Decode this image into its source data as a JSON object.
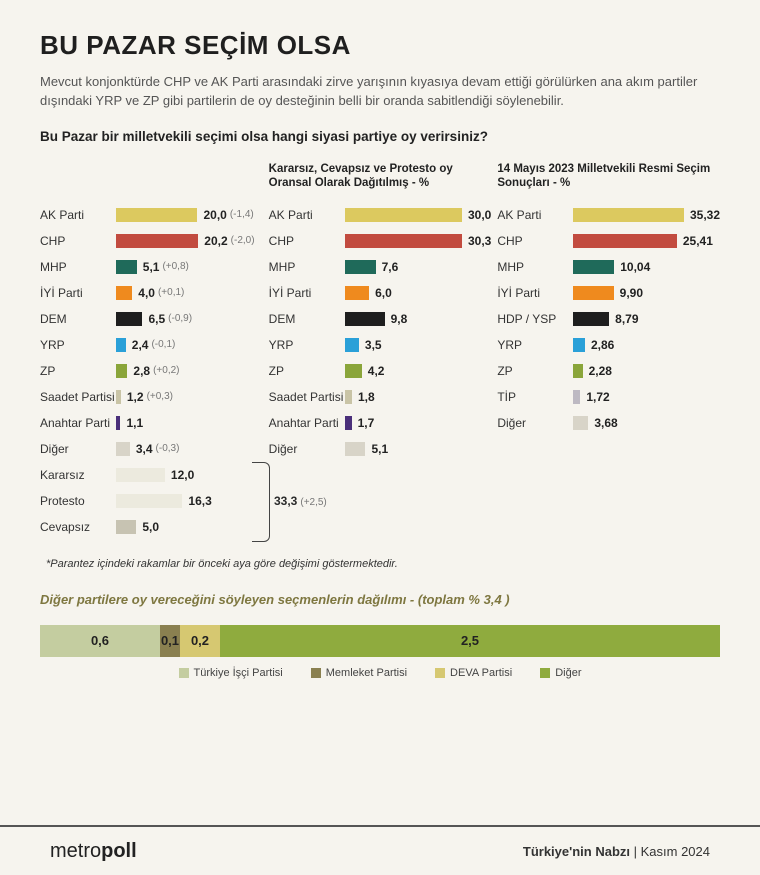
{
  "title": "BU PAZAR SEÇİM OLSA",
  "intro": "Mevcut konjonktürde CHP ve AK Parti arasındaki zirve yarışının kıyasıya devam ettiği görülürken ana akım partiler dışındaki YRP ve ZP gibi partilerin de oy desteğinin belli bir oranda sabitlendiği söylenebilir.",
  "question": "Bu Pazar bir milletvekili seçimi olsa hangi siyasi partiye oy verirsiniz?",
  "colors": {
    "AK Parti": "#dcc95f",
    "CHP": "#c24b3f",
    "MHP": "#1f6a5a",
    "İYİ Parti": "#ef8a1e",
    "DEM": "#1e1e1e",
    "HDP / YSP": "#1e1e1e",
    "YRP": "#2aa0d8",
    "ZP": "#8aa53a",
    "Saadet Partisi": "#c9c4a6",
    "Anahtar Parti": "#4a2f7a",
    "TİP": "#bdb9c2",
    "Diğer": "#d8d4c8",
    "Kararsız": "#eceade",
    "Protesto": "#eceade",
    "Cevapsız": "#c7c3b2"
  },
  "panels": [
    {
      "header": "",
      "max": 36,
      "rows": [
        {
          "label": "AK Parti",
          "value": "20,0",
          "num": 20.0,
          "delta": "(-1,4)"
        },
        {
          "label": "CHP",
          "value": "20,2",
          "num": 20.2,
          "delta": "(-2,0)"
        },
        {
          "label": "MHP",
          "value": "5,1",
          "num": 5.1,
          "delta": "(+0,8)"
        },
        {
          "label": "İYİ Parti",
          "value": "4,0",
          "num": 4.0,
          "delta": "(+0,1)"
        },
        {
          "label": "DEM",
          "value": "6,5",
          "num": 6.5,
          "delta": "(-0,9)"
        },
        {
          "label": "YRP",
          "value": "2,4",
          "num": 2.4,
          "delta": "(-0,1)"
        },
        {
          "label": "ZP",
          "value": "2,8",
          "num": 2.8,
          "delta": "(+0,2)"
        },
        {
          "label": "Saadet Partisi",
          "value": "1,2",
          "num": 1.2,
          "delta": "(+0,3)"
        },
        {
          "label": "Anahtar Parti",
          "value": "1,1",
          "num": 1.1,
          "delta": ""
        },
        {
          "label": "Diğer",
          "value": "3,4",
          "num": 3.4,
          "delta": "(-0,3)"
        },
        {
          "label": "Kararsız",
          "value": "12,0",
          "num": 12.0,
          "delta": ""
        },
        {
          "label": "Protesto",
          "value": "16,3",
          "num": 16.3,
          "delta": ""
        },
        {
          "label": "Cevapsız",
          "value": "5,0",
          "num": 5.0,
          "delta": ""
        }
      ]
    },
    {
      "header": "Kararsız, Cevapsız ve Protesto oy Oransal Olarak Dağıtılmış - %",
      "max": 36,
      "rows": [
        {
          "label": "AK Parti",
          "value": "30,0",
          "num": 30.0
        },
        {
          "label": "CHP",
          "value": "30,3",
          "num": 30.3
        },
        {
          "label": "MHP",
          "value": "7,6",
          "num": 7.6
        },
        {
          "label": "İYİ Parti",
          "value": "6,0",
          "num": 6.0
        },
        {
          "label": "DEM",
          "value": "9,8",
          "num": 9.8
        },
        {
          "label": "YRP",
          "value": "3,5",
          "num": 3.5
        },
        {
          "label": "ZP",
          "value": "4,2",
          "num": 4.2
        },
        {
          "label": "Saadet Partisi",
          "value": "1,8",
          "num": 1.8
        },
        {
          "label": "Anahtar Parti",
          "value": "1,7",
          "num": 1.7
        },
        {
          "label": "Diğer",
          "value": "5,1",
          "num": 5.1
        }
      ]
    },
    {
      "header": "14 Mayıs 2023 Milletvekili Resmi Seçim Sonuçları - %",
      "max": 36,
      "rows": [
        {
          "label": "AK Parti",
          "value": "35,32",
          "num": 35.32
        },
        {
          "label": "CHP",
          "value": "25,41",
          "num": 25.41
        },
        {
          "label": "MHP",
          "value": "10,04",
          "num": 10.04
        },
        {
          "label": "İYİ Parti",
          "value": "9,90",
          "num": 9.9
        },
        {
          "label": "HDP / YSP",
          "value": "8,79",
          "num": 8.79
        },
        {
          "label": "YRP",
          "value": "2,86",
          "num": 2.86
        },
        {
          "label": "ZP",
          "value": "2,28",
          "num": 2.28
        },
        {
          "label": "TİP",
          "value": "1,72",
          "num": 1.72
        },
        {
          "label": "Diğer",
          "value": "3,68",
          "num": 3.68
        }
      ]
    }
  ],
  "bracket": {
    "value": "33,3",
    "delta": "(+2,5)"
  },
  "footnote": "*Parantez içindeki rakamlar bir önceki aya göre değişimi göstermektedir.",
  "other_title": "Diğer partilere oy vereceğini söyleyen seçmenlerin dağılımı -  (toplam % 3,4 )",
  "stacked": {
    "total": 3.4,
    "segments": [
      {
        "label": "Türkiye İşçi Partisi",
        "value": "0,6",
        "num": 0.6,
        "color": "#c4cda0"
      },
      {
        "label": "Memleket Partisi",
        "value": "0,1",
        "num": 0.1,
        "color": "#8a8050"
      },
      {
        "label": "DEVA Partisi",
        "value": "0,2",
        "num": 0.2,
        "color": "#d6c871"
      },
      {
        "label": "Diğer",
        "value": "2,5",
        "num": 2.5,
        "color": "#8fab3e"
      }
    ]
  },
  "footer": {
    "logo_light": "metro",
    "logo_bold": "poll",
    "right_bold": "Türkiye'nin Nabzı",
    "right_sep": " | ",
    "right_light": "Kasım 2024"
  }
}
